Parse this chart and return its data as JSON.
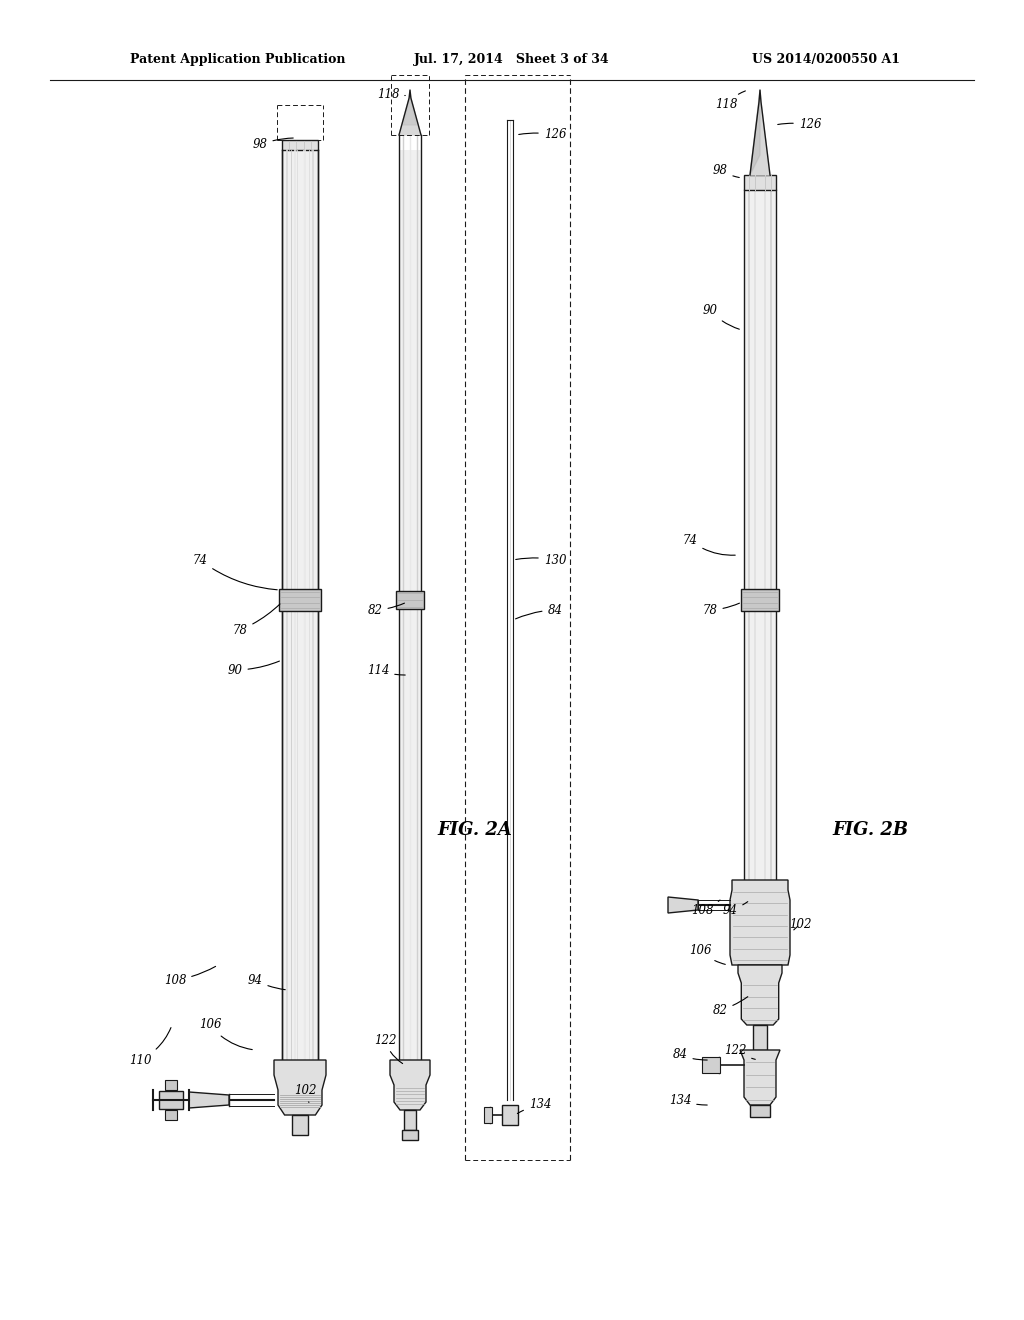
{
  "bg_color": "#ffffff",
  "line_color": "#1a1a1a",
  "header_left": "Patent Application Publication",
  "header_center": "Jul. 17, 2014   Sheet 3 of 34",
  "header_right": "US 2014/0200550 A1",
  "fig2a_label": "FIG. 2A",
  "fig2b_label": "FIG. 2B"
}
